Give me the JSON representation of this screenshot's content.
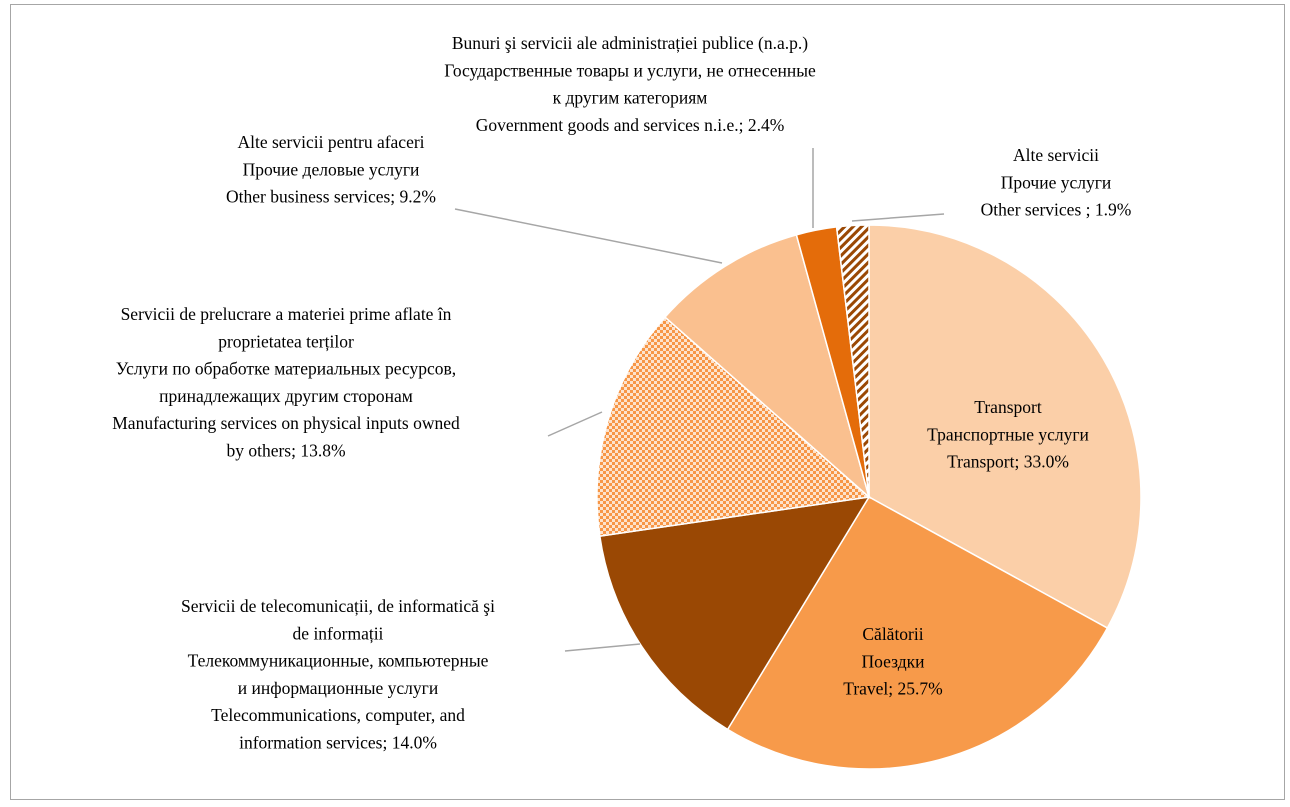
{
  "chart_data": {
    "type": "pie",
    "categories": [
      [
        "Transport",
        "Транспортные услуги",
        "Transport; 33.0%"
      ],
      [
        "Călătorii",
        "Поездки",
        "Travel; 25.7%"
      ],
      [
        "Servicii de telecomunicații, de informatică şi",
        "de informații",
        "Телекоммуникационные, компьютерные",
        "и информационные услуги",
        "Telecommunications, computer, and",
        "information services; 14.0%"
      ],
      [
        "Servicii de prelucrare a materiei prime aflate în",
        "proprietatea terților",
        "Услуги по обработке материальных ресурсов,",
        "принадлежащих другим сторонам",
        "Manufacturing services on physical inputs owned",
        "by others; 13.8%"
      ],
      [
        "Alte servicii pentru afaceri",
        "Прочие деловые услуги",
        "Other business services; 9.2%"
      ],
      [
        "Bunuri şi servicii ale administrației publice (n.a.p.)",
        "Государственные товары и услуги, не отнесенные",
        "к другим категориям",
        "Government goods and services n.i.e.; 2.4%"
      ],
      [
        "Alte servicii",
        "Прочие услуги",
        "Other services ; 1.9%"
      ]
    ],
    "values": [
      33.0,
      25.7,
      14.0,
      13.8,
      9.2,
      2.4,
      1.9
    ],
    "colors": [
      "#fbcfa8",
      "#f79a4a",
      "#9a4804",
      "#f79646",
      "#fac08f",
      "#e46c0a",
      "#9a4804"
    ],
    "patterns": [
      null,
      null,
      null,
      "crosshatch",
      null,
      null,
      "diagonal"
    ]
  }
}
